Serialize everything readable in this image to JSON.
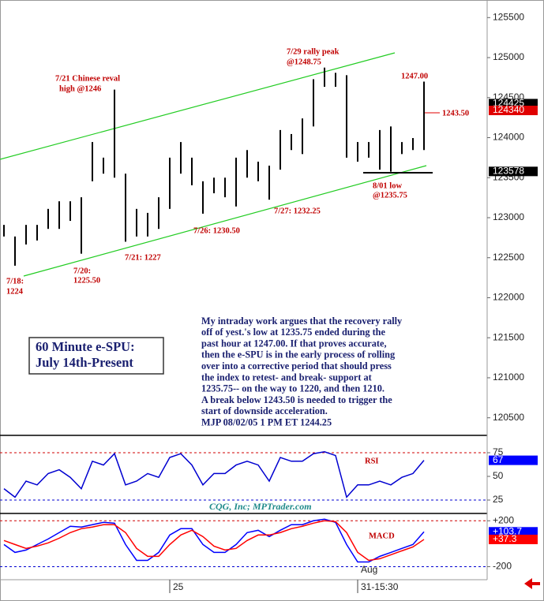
{
  "title": [
    "60 Minute e-SPU:",
    "July 14th-Present"
  ],
  "commentary": [
    "My intraday work argues that the recovery rally",
    "off of yest.'s low at 1235.75 ended during the",
    "past hour at 1247.00. If that proves accurate,",
    "then the e-SPU is in the early process of rolling",
    "over into a corrective period that should press",
    "the index to retest- and break- support at",
    "1235.75-- on the way to 1220, and then 1210.",
    "A break below 1243.50 is needed to trigger the",
    "start of downside acceleration.",
    "MJP 08/02/05 1 PM ET 1244.25"
  ],
  "credit": "CQG, Inc; MPTrader.com",
  "chart_data": [
    {
      "type": "hilo",
      "categories": [
        null,
        null,
        null,
        null,
        null,
        null,
        null,
        null,
        null,
        null,
        null,
        null,
        null,
        null,
        null,
        "25",
        null,
        null,
        null,
        null,
        null,
        null,
        null,
        null,
        null,
        null,
        null,
        null,
        null,
        null,
        null,
        null,
        "31-15:30",
        null,
        null,
        null,
        null,
        null,
        null
      ],
      "highs": [
        122910,
        122765,
        122910,
        122910,
        123110,
        123205,
        123205,
        123255,
        123945,
        123750,
        124600,
        123550,
        123110,
        123060,
        123255,
        123750,
        123945,
        123750,
        123455,
        123500,
        123500,
        123750,
        123845,
        123700,
        123650,
        124095,
        124045,
        124240,
        124730,
        124875,
        124810,
        124780,
        123945,
        123945,
        124095,
        124140,
        123945,
        123995,
        124700
      ],
      "lows": [
        122765,
        122400,
        122665,
        122715,
        122860,
        122860,
        122960,
        122550,
        123455,
        123550,
        123500,
        122700,
        122765,
        122765,
        122860,
        123110,
        123550,
        123405,
        123050,
        123305,
        123255,
        123140,
        123500,
        123455,
        123225,
        123600,
        123845,
        123795,
        124140,
        124635,
        124635,
        123750,
        123700,
        123750,
        123600,
        123575,
        123795,
        123845,
        123845
      ],
      "color": "#000000",
      "ylim": [
        120300,
        125700
      ],
      "yticks": [
        120500,
        121000,
        121500,
        122000,
        122500,
        123000,
        123500,
        124000,
        124500,
        125000,
        125500
      ],
      "axis_markers": [
        {
          "value": 124425,
          "color": "#000000"
        },
        {
          "value": 124340,
          "color": "#e00000"
        },
        {
          "value": 123578,
          "color": "#000000"
        }
      ],
      "annotations": [
        "7/21 Chinese reval",
        "high @1246",
        "7/29 rally peak",
        "@1248.75",
        "1247.00",
        "1243.50",
        "8/01 low",
        "@1235.75",
        "7/27: 1232.25",
        "7/26: 1230.50",
        "7/21: 1227",
        "7/20:",
        "1225.50",
        "7/18:",
        "1224"
      ]
    },
    {
      "type": "line",
      "title": "RSI",
      "series": [
        {
          "color": "#0000d0",
          "values": [
            37,
            28,
            45,
            41,
            53,
            57,
            49,
            37,
            66,
            62,
            74,
            41,
            45,
            53,
            49,
            70,
            74,
            62,
            41,
            53,
            53,
            62,
            66,
            62,
            45,
            70,
            66,
            66,
            74,
            76,
            72,
            28,
            41,
            41,
            45,
            41,
            49,
            53,
            67
          ]
        }
      ],
      "ylim": [
        15,
        90
      ],
      "yticks": [
        25,
        50,
        75
      ],
      "reference_lines": [
        {
          "value": 75,
          "color": "#d00000"
        },
        {
          "value": 25,
          "color": "#0000d0"
        }
      ],
      "value_boxes": [
        {
          "value": 67,
          "color": "#0000ff"
        }
      ]
    },
    {
      "type": "line",
      "title": "MACD",
      "series": [
        {
          "color": "#0000ff",
          "values": [
            -7,
            -76,
            -55,
            -7,
            41,
            97,
            152,
            145,
            166,
            186,
            179,
            -7,
            -145,
            -145,
            -76,
            76,
            131,
            131,
            -7,
            -76,
            -76,
            -7,
            97,
            117,
            62,
            117,
            166,
            166,
            200,
            214,
            186,
            -7,
            -159,
            -159,
            -110,
            -76,
            -41,
            -7,
            103.7
          ]
        },
        {
          "color": "#ff0000",
          "values": [
            28,
            -7,
            -41,
            -21,
            7,
            48,
            97,
            131,
            145,
            166,
            166,
            97,
            -41,
            -110,
            -110,
            -7,
            76,
            117,
            62,
            -21,
            -55,
            -41,
            28,
            76,
            76,
            97,
            131,
            152,
            179,
            200,
            193,
            97,
            -76,
            -145,
            -131,
            -97,
            -62,
            -28,
            37.3
          ]
        }
      ],
      "ylim": [
        -300,
        250
      ],
      "yticks": [
        {
          "value": 200,
          "label": "+200"
        },
        -200
      ],
      "reference_lines": [
        {
          "value": 200,
          "color": "#d00000"
        },
        {
          "value": -200,
          "color": "#0000d0"
        }
      ],
      "value_boxes": [
        {
          "value": 103.7,
          "label": "+103.7",
          "color": "#0000ff"
        },
        {
          "value": 37.3,
          "label": "+37.3",
          "color": "#ff0000"
        }
      ],
      "annotations": [
        "Aug"
      ]
    }
  ]
}
